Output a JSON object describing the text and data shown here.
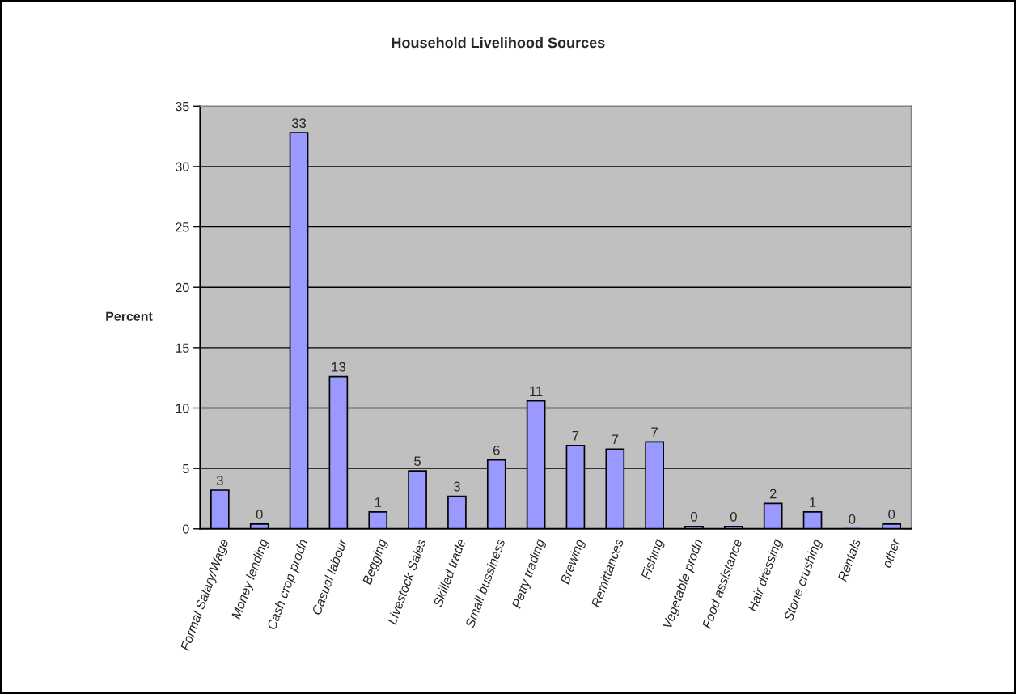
{
  "chart_data": {
    "type": "bar",
    "title": "Household Livelihood Sources",
    "ylabel": "Percent",
    "categories": [
      "Formal Salary/Wage",
      "Money lending",
      "Cash crop prodn",
      "Casual labour",
      "Begging",
      "Livestock Sales",
      "Skilled trade",
      "Small bussiness",
      "Petty trading",
      "Brewing",
      "Remittances",
      "Fishing",
      "Vegetable prodn",
      "Food assistance",
      "Hair dressing",
      "Stone crushing",
      "Rentals",
      "other"
    ],
    "values": [
      3.2,
      0.4,
      32.8,
      12.6,
      1.4,
      4.8,
      2.7,
      5.7,
      10.6,
      6.9,
      6.6,
      7.2,
      0.2,
      0.2,
      2.1,
      1.4,
      0,
      0.4
    ],
    "value_labels": [
      "3",
      "0",
      "33",
      "13",
      "1",
      "5",
      "3",
      "6",
      "11",
      "7",
      "7",
      "7",
      "0",
      "0",
      "2",
      "1",
      "0",
      "0"
    ],
    "color": "#9999ff",
    "ylim": [
      0,
      35
    ],
    "yticks": [
      0,
      5,
      10,
      15,
      20,
      25,
      30,
      35
    ],
    "grid": "y"
  }
}
